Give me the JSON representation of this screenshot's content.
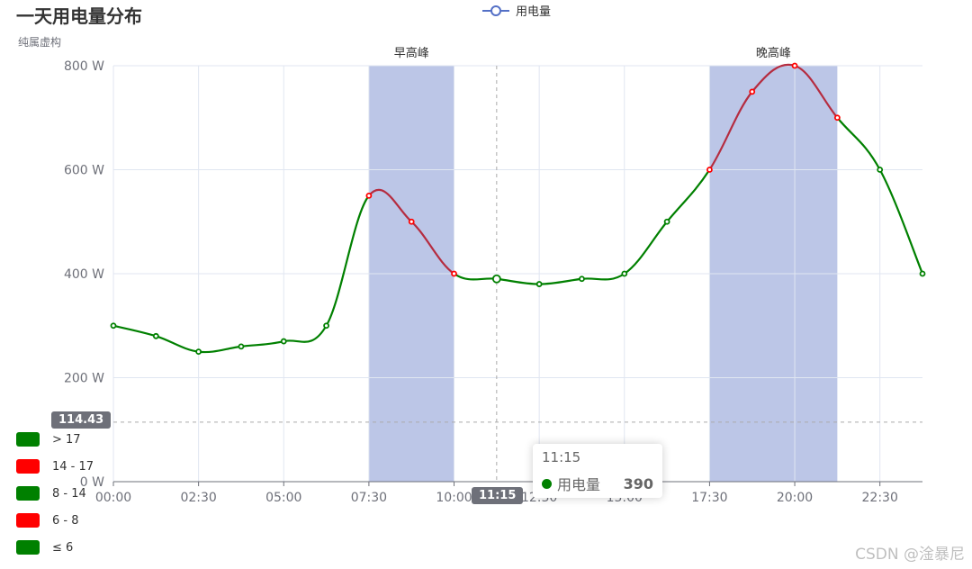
{
  "title": "一天用电量分布",
  "subtitle": "纯属虚构",
  "legend": [
    "用电量"
  ],
  "watermark": "CSDN @淦暴尼",
  "pointer": {
    "y_label": "114.43",
    "x_label": "11:15"
  },
  "tooltip": {
    "time": "11:15",
    "series": "用电量",
    "value": "390"
  },
  "visual_map": [
    {
      "label": "> 17",
      "color": "#008000"
    },
    {
      "label": "14 - 17",
      "color": "#ff0000"
    },
    {
      "label": "8 - 14",
      "color": "#008000"
    },
    {
      "label": "6 - 8",
      "color": "#ff0000"
    },
    {
      "label": "≤ 6",
      "color": "#008000"
    }
  ],
  "colors": {
    "line_normal": "#008000",
    "line_peak": "#b52c40",
    "band": "#bcc6e7",
    "grid": "#e0e6f1",
    "axis_text": "#6e7079"
  },
  "chart_data": {
    "type": "line",
    "title": "一天用电量分布",
    "subtitle": "纯属虚构",
    "x": [
      "00:00",
      "01:15",
      "02:30",
      "03:45",
      "05:00",
      "06:15",
      "07:30",
      "08:45",
      "10:00",
      "11:15",
      "12:30",
      "13:45",
      "15:00",
      "16:15",
      "17:30",
      "18:45",
      "20:00",
      "21:15",
      "22:30",
      "23:45"
    ],
    "x_ticks": [
      "00:00",
      "02:30",
      "05:00",
      "07:30",
      "10:00",
      "12:30",
      "15:00",
      "17:30",
      "20:00",
      "22:30"
    ],
    "series": [
      {
        "name": "用电量",
        "values": [
          300,
          280,
          250,
          260,
          270,
          300,
          550,
          500,
          400,
          390,
          380,
          390,
          400,
          500,
          600,
          750,
          800,
          700,
          600,
          400
        ]
      }
    ],
    "ylim": [
      0,
      800
    ],
    "y_ticks": [
      "0 W",
      "200 W",
      "400 W",
      "600 W",
      "800 W"
    ],
    "mark_areas": [
      {
        "name": "早高峰",
        "from": "07:30",
        "to": "10:00"
      },
      {
        "name": "晚高峰",
        "from": "17:30",
        "to": "21:15"
      }
    ],
    "peak_ranges": [
      [
        6,
        8
      ],
      [
        14,
        17
      ]
    ],
    "grid": true,
    "legend_position": "top-center"
  }
}
